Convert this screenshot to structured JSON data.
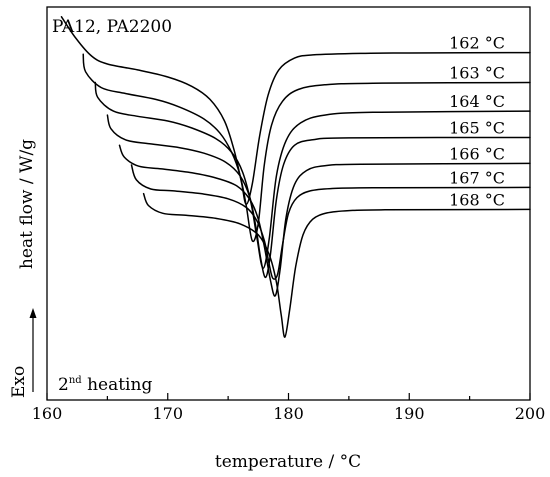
{
  "chart_data": {
    "type": "line",
    "title": "PA12, PA2200",
    "annotation": {
      "prefix": "2",
      "superscript": "nd",
      "text": " heating"
    },
    "xlabel": "temperature / °C",
    "ylabel": "heat flow / W/g",
    "exo_label": "Exo",
    "xlim": [
      160,
      200
    ],
    "ylim": [
      0,
      1
    ],
    "xticks": [
      160,
      170,
      180,
      190,
      200
    ],
    "yticks_shown": false,
    "grid": false,
    "legend": "inline-right",
    "series": [
      {
        "name": "162 °C",
        "x": [
          161.2,
          162.4,
          163.7,
          165,
          167.5,
          170,
          172,
          173.5,
          174.7,
          175.5,
          176.1,
          176.5,
          177,
          177.6,
          178.3,
          179.2,
          180.5,
          182,
          186,
          190,
          200
        ],
        "y": [
          0.975,
          0.92,
          0.875,
          0.855,
          0.84,
          0.822,
          0.798,
          0.765,
          0.71,
          0.635,
          0.555,
          0.498,
          0.55,
          0.67,
          0.775,
          0.84,
          0.87,
          0.878,
          0.882,
          0.883,
          0.884
        ]
      },
      {
        "name": "163 °C",
        "x": [
          163,
          163.2,
          164.5,
          166.5,
          169,
          171,
          173,
          174.3,
          175.3,
          176,
          176.5,
          177,
          177.5,
          178,
          178.6,
          179.5,
          180.8,
          183,
          187,
          200
        ],
        "y": [
          0.88,
          0.835,
          0.795,
          0.78,
          0.765,
          0.745,
          0.715,
          0.68,
          0.63,
          0.57,
          0.495,
          0.405,
          0.45,
          0.6,
          0.7,
          0.76,
          0.79,
          0.802,
          0.806,
          0.808
        ]
      },
      {
        "name": "164 °C",
        "x": [
          164,
          164.2,
          165.5,
          167.5,
          170,
          172,
          174,
          175.3,
          176.2,
          176.9,
          177.4,
          177.9,
          178.4,
          179,
          179.8,
          181,
          183,
          187,
          200
        ],
        "y": [
          0.808,
          0.77,
          0.735,
          0.722,
          0.71,
          0.692,
          0.665,
          0.63,
          0.58,
          0.5,
          0.41,
          0.335,
          0.41,
          0.57,
          0.66,
          0.705,
          0.725,
          0.732,
          0.735
        ]
      },
      {
        "name": "165 °C",
        "x": [
          165,
          165.3,
          166.5,
          168.5,
          171,
          173,
          174.8,
          176,
          176.8,
          177.3,
          177.7,
          178.1,
          178.5,
          179,
          179.6,
          180.5,
          182,
          185,
          200
        ],
        "y": [
          0.725,
          0.69,
          0.662,
          0.652,
          0.642,
          0.628,
          0.605,
          0.57,
          0.515,
          0.44,
          0.36,
          0.312,
          0.37,
          0.51,
          0.6,
          0.648,
          0.662,
          0.667,
          0.668
        ]
      },
      {
        "name": "166 °C",
        "x": [
          166,
          166.4,
          167.6,
          169.5,
          172,
          174,
          175.7,
          176.8,
          177.5,
          178,
          178.5,
          178.9,
          179.3,
          179.8,
          180.5,
          181.5,
          183,
          186,
          200
        ],
        "y": [
          0.648,
          0.618,
          0.595,
          0.588,
          0.578,
          0.565,
          0.545,
          0.51,
          0.46,
          0.39,
          0.305,
          0.265,
          0.33,
          0.465,
          0.548,
          0.584,
          0.596,
          0.6,
          0.602
        ]
      },
      {
        "name": "167 °C",
        "x": [
          167,
          167.4,
          168.6,
          170.5,
          173,
          175,
          176.5,
          177.4,
          178,
          178.4,
          178.7,
          179.1,
          179.5,
          180,
          180.7,
          181.8,
          183.5,
          187,
          200
        ],
        "y": [
          0.598,
          0.56,
          0.537,
          0.532,
          0.524,
          0.512,
          0.49,
          0.455,
          0.405,
          0.345,
          0.31,
          0.32,
          0.395,
          0.475,
          0.515,
          0.532,
          0.538,
          0.54,
          0.541
        ]
      },
      {
        "name": "168 °C",
        "x": [
          168,
          168.4,
          169.6,
          171.5,
          174,
          176,
          177.5,
          178.4,
          179,
          179.4,
          179.7,
          180.1,
          180.6,
          181.2,
          182,
          183.2,
          185,
          188,
          200
        ],
        "y": [
          0.525,
          0.495,
          0.475,
          0.47,
          0.462,
          0.448,
          0.42,
          0.37,
          0.3,
          0.215,
          0.16,
          0.23,
          0.34,
          0.42,
          0.46,
          0.476,
          0.482,
          0.484,
          0.485
        ]
      }
    ]
  }
}
